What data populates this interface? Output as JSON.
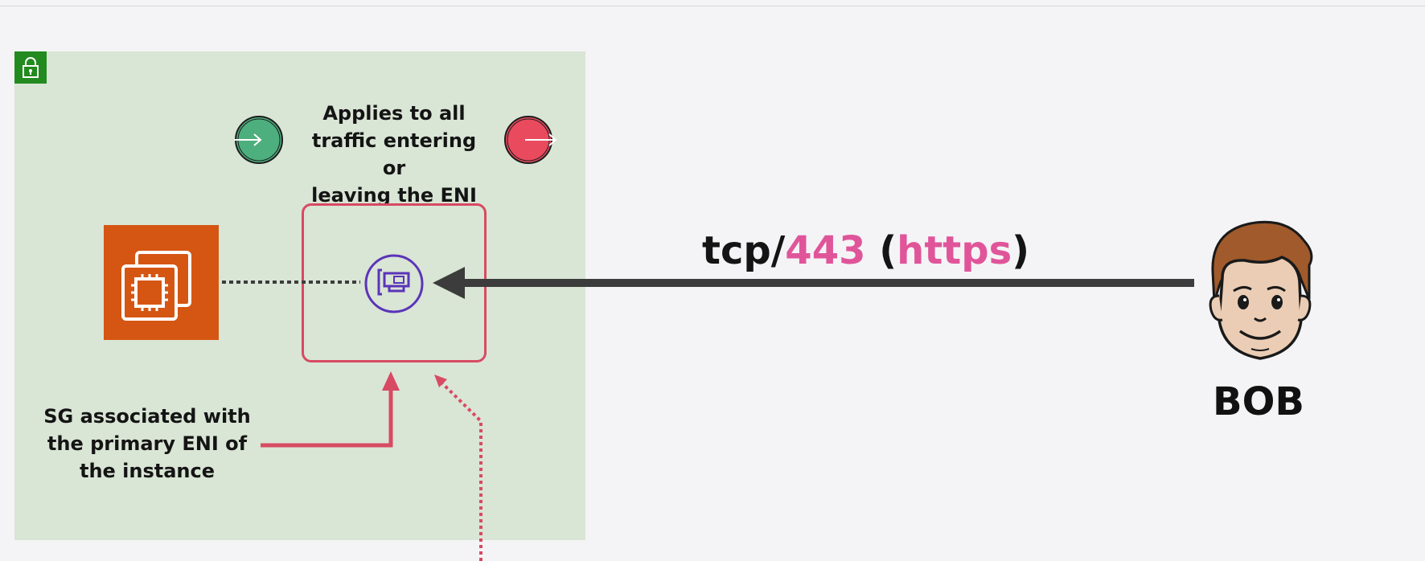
{
  "diagram": {
    "applies_text": "Applies to all\ntraffic entering or\nleaving the ENI",
    "sg_text": "SG associated with\nthe primary ENI of\nthe instance",
    "protocol": {
      "proto": "tcp/",
      "port": "443",
      "open_paren": " (",
      "service": "https",
      "close_paren": ")"
    },
    "bob_label": "BOB"
  },
  "colors": {
    "vpc_background": "#d9e5d5",
    "lock_badge": "#228a1e",
    "inbound_circle": "#4caf7d",
    "outbound_circle": "#ea4a5e",
    "ec2_tile": "#d55613",
    "sg_box": "#d84a63",
    "eni_icon": "#5b34b8",
    "arrow": "#3c3c3c",
    "highlight": "#e0559a"
  },
  "icons": [
    "lock-icon",
    "inbound-arrow-icon",
    "outbound-arrow-icon",
    "ec2-instance-icon",
    "eni-icon",
    "bob-face-icon"
  ]
}
